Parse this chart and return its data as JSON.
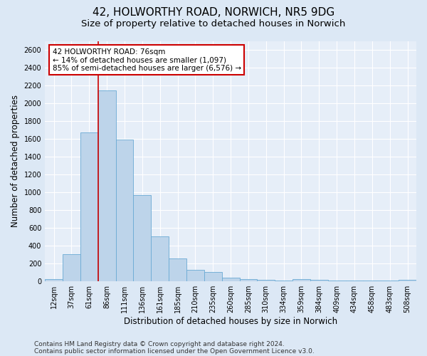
{
  "title_line1": "42, HOLWORTHY ROAD, NORWICH, NR5 9DG",
  "title_line2": "Size of property relative to detached houses in Norwich",
  "xlabel": "Distribution of detached houses by size in Norwich",
  "ylabel": "Number of detached properties",
  "categories": [
    "12sqm",
    "37sqm",
    "61sqm",
    "86sqm",
    "111sqm",
    "136sqm",
    "161sqm",
    "185sqm",
    "210sqm",
    "235sqm",
    "260sqm",
    "285sqm",
    "310sqm",
    "334sqm",
    "359sqm",
    "384sqm",
    "409sqm",
    "434sqm",
    "458sqm",
    "483sqm",
    "508sqm"
  ],
  "values": [
    20,
    300,
    1670,
    2140,
    1595,
    970,
    500,
    250,
    125,
    100,
    38,
    18,
    12,
    8,
    20,
    10,
    5,
    3,
    5,
    2,
    15
  ],
  "bar_color": "#bdd4ea",
  "bar_edge_color": "#6aaad4",
  "vline_color": "#cc0000",
  "annotation_text": "42 HOLWORTHY ROAD: 76sqm\n← 14% of detached houses are smaller (1,097)\n85% of semi-detached houses are larger (6,576) →",
  "annotation_box_color": "#ffffff",
  "annotation_box_edge_color": "#cc0000",
  "ylim": [
    0,
    2700
  ],
  "yticks": [
    0,
    200,
    400,
    600,
    800,
    1000,
    1200,
    1400,
    1600,
    1800,
    2000,
    2200,
    2400,
    2600
  ],
  "bg_color": "#dce8f5",
  "plot_bg_color": "#e6eef8",
  "footer_line1": "Contains HM Land Registry data © Crown copyright and database right 2024.",
  "footer_line2": "Contains public sector information licensed under the Open Government Licence v3.0.",
  "title_fontsize": 11,
  "subtitle_fontsize": 9.5,
  "axis_label_fontsize": 8.5,
  "tick_fontsize": 7,
  "annotation_fontsize": 7.5,
  "footer_fontsize": 6.5
}
